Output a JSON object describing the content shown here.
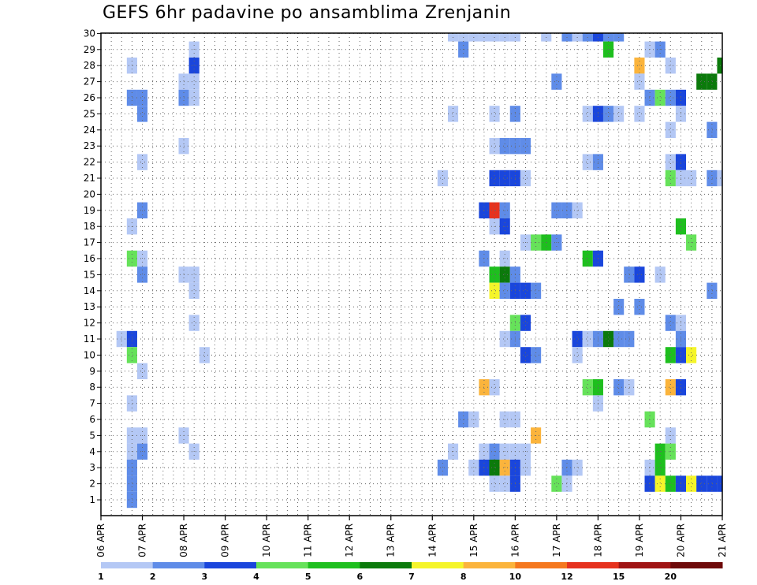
{
  "chart_data": {
    "type": "heatmap",
    "title": "GEFS 6hr padavine po ansamblima Zrenjanin",
    "x_tick_labels": [
      "06 APR",
      "07 APR",
      "08 APR",
      "09 APR",
      "10 APR",
      "11 APR",
      "12 APR",
      "13 APR",
      "14 APR",
      "15 APR",
      "16 APR",
      "17 APR",
      "18 APR",
      "19 APR",
      "20 APR",
      "21 APR"
    ],
    "y_range": [
      1,
      30
    ],
    "time_steps_per_day": 4,
    "grid": true,
    "legend_position": "bottom",
    "color_scale": {
      "labels": [
        "1",
        "2",
        "3",
        "4",
        "5",
        "6",
        "7",
        "8",
        "10",
        "12",
        "15",
        "20"
      ],
      "colors": [
        "#b4c8f5",
        "#5f8ce8",
        "#1a46dc",
        "#66e25a",
        "#1ebf1e",
        "#0b7a0b",
        "#f5f52a",
        "#fbb43c",
        "#f5781e",
        "#e6321e",
        "#a01414",
        "#6e0a0a"
      ]
    },
    "cells": [
      [
        30,
        34,
        0
      ],
      [
        30,
        35,
        0
      ],
      [
        30,
        36,
        0
      ],
      [
        30,
        37,
        0
      ],
      [
        30,
        38,
        0
      ],
      [
        30,
        39,
        0
      ],
      [
        30,
        40,
        0
      ],
      [
        30,
        43,
        0
      ],
      [
        30,
        45,
        1
      ],
      [
        30,
        46,
        0
      ],
      [
        30,
        47,
        1
      ],
      [
        30,
        48,
        2
      ],
      [
        30,
        49,
        1
      ],
      [
        30,
        50,
        1
      ],
      [
        29,
        9,
        0
      ],
      [
        29,
        35,
        1
      ],
      [
        29,
        49,
        4
      ],
      [
        29,
        53,
        0
      ],
      [
        29,
        54,
        1
      ],
      [
        29,
        61,
        0
      ],
      [
        29,
        62,
        2
      ],
      [
        29,
        66,
        0
      ],
      [
        28,
        3,
        0
      ],
      [
        28,
        9,
        2
      ],
      [
        28,
        52,
        7
      ],
      [
        28,
        55,
        0
      ],
      [
        28,
        60,
        5
      ],
      [
        27,
        8,
        0
      ],
      [
        27,
        9,
        0
      ],
      [
        27,
        44,
        1
      ],
      [
        27,
        52,
        0
      ],
      [
        27,
        58,
        5
      ],
      [
        27,
        59,
        5
      ],
      [
        27,
        65,
        5
      ],
      [
        27,
        66,
        8
      ],
      [
        27,
        67,
        4
      ],
      [
        27,
        68,
        0
      ],
      [
        26,
        3,
        1
      ],
      [
        26,
        4,
        1
      ],
      [
        26,
        8,
        1
      ],
      [
        26,
        9,
        0
      ],
      [
        26,
        53,
        1
      ],
      [
        26,
        54,
        3
      ],
      [
        26,
        55,
        1
      ],
      [
        26,
        56,
        2
      ],
      [
        26,
        66,
        0
      ],
      [
        26,
        67,
        1
      ],
      [
        25,
        4,
        1
      ],
      [
        25,
        34,
        0
      ],
      [
        25,
        38,
        0
      ],
      [
        25,
        40,
        1
      ],
      [
        25,
        47,
        0
      ],
      [
        25,
        48,
        2
      ],
      [
        25,
        49,
        1
      ],
      [
        25,
        50,
        0
      ],
      [
        25,
        52,
        0
      ],
      [
        25,
        56,
        0
      ],
      [
        24,
        55,
        0
      ],
      [
        24,
        59,
        1
      ],
      [
        23,
        8,
        0
      ],
      [
        23,
        38,
        0
      ],
      [
        23,
        39,
        1
      ],
      [
        23,
        40,
        1
      ],
      [
        23,
        41,
        1
      ],
      [
        22,
        4,
        0
      ],
      [
        22,
        47,
        0
      ],
      [
        22,
        48,
        1
      ],
      [
        22,
        55,
        0
      ],
      [
        22,
        56,
        2
      ],
      [
        21,
        33,
        0
      ],
      [
        21,
        38,
        2
      ],
      [
        21,
        39,
        2
      ],
      [
        21,
        40,
        2
      ],
      [
        21,
        41,
        0
      ],
      [
        21,
        55,
        3
      ],
      [
        21,
        56,
        0
      ],
      [
        21,
        57,
        0
      ],
      [
        21,
        59,
        1
      ],
      [
        21,
        60,
        0
      ],
      [
        21,
        61,
        2
      ],
      [
        21,
        62,
        4
      ],
      [
        21,
        63,
        3
      ],
      [
        21,
        64,
        3
      ],
      [
        21,
        65,
        0
      ],
      [
        19,
        4,
        1
      ],
      [
        19,
        37,
        2
      ],
      [
        19,
        38,
        9
      ],
      [
        19,
        39,
        1
      ],
      [
        19,
        44,
        1
      ],
      [
        19,
        45,
        1
      ],
      [
        19,
        46,
        0
      ],
      [
        18,
        3,
        0
      ],
      [
        18,
        38,
        0
      ],
      [
        18,
        39,
        2
      ],
      [
        18,
        56,
        4
      ],
      [
        18,
        63,
        2
      ],
      [
        17,
        41,
        0
      ],
      [
        17,
        42,
        3
      ],
      [
        17,
        43,
        4
      ],
      [
        17,
        44,
        1
      ],
      [
        17,
        57,
        3
      ],
      [
        16,
        3,
        3
      ],
      [
        16,
        4,
        0
      ],
      [
        16,
        37,
        1
      ],
      [
        16,
        39,
        0
      ],
      [
        16,
        47,
        4
      ],
      [
        16,
        48,
        2
      ],
      [
        16,
        66,
        0
      ],
      [
        15,
        4,
        1
      ],
      [
        15,
        8,
        0
      ],
      [
        15,
        9,
        0
      ],
      [
        15,
        38,
        4
      ],
      [
        15,
        39,
        5
      ],
      [
        15,
        40,
        1
      ],
      [
        15,
        51,
        1
      ],
      [
        15,
        52,
        2
      ],
      [
        15,
        54,
        0
      ],
      [
        15,
        61,
        0
      ],
      [
        15,
        66,
        0
      ],
      [
        15,
        67,
        3
      ],
      [
        15,
        68,
        1
      ],
      [
        14,
        9,
        0
      ],
      [
        14,
        38,
        6
      ],
      [
        14,
        39,
        1
      ],
      [
        14,
        40,
        2
      ],
      [
        14,
        41,
        2
      ],
      [
        14,
        42,
        1
      ],
      [
        14,
        59,
        1
      ],
      [
        14,
        64,
        0
      ],
      [
        13,
        50,
        1
      ],
      [
        13,
        52,
        1
      ],
      [
        13,
        62,
        0
      ],
      [
        12,
        9,
        0
      ],
      [
        12,
        40,
        3
      ],
      [
        12,
        41,
        2
      ],
      [
        12,
        55,
        1
      ],
      [
        12,
        56,
        0
      ],
      [
        11,
        2,
        0
      ],
      [
        11,
        3,
        2
      ],
      [
        11,
        39,
        0
      ],
      [
        11,
        40,
        1
      ],
      [
        11,
        46,
        2
      ],
      [
        11,
        47,
        0
      ],
      [
        11,
        48,
        1
      ],
      [
        11,
        49,
        5
      ],
      [
        11,
        50,
        1
      ],
      [
        11,
        51,
        1
      ],
      [
        11,
        56,
        1
      ],
      [
        10,
        3,
        3
      ],
      [
        10,
        10,
        0
      ],
      [
        10,
        41,
        2
      ],
      [
        10,
        42,
        1
      ],
      [
        10,
        46,
        0
      ],
      [
        10,
        55,
        4
      ],
      [
        10,
        56,
        2
      ],
      [
        10,
        57,
        6
      ],
      [
        10,
        66,
        0
      ],
      [
        10,
        67,
        0
      ],
      [
        9,
        4,
        0
      ],
      [
        9,
        68,
        1
      ],
      [
        8,
        37,
        7
      ],
      [
        8,
        38,
        0
      ],
      [
        8,
        47,
        3
      ],
      [
        8,
        48,
        4
      ],
      [
        8,
        50,
        1
      ],
      [
        8,
        51,
        0
      ],
      [
        8,
        55,
        7
      ],
      [
        8,
        56,
        2
      ],
      [
        8,
        64,
        0
      ],
      [
        8,
        68,
        5
      ],
      [
        7,
        3,
        0
      ],
      [
        7,
        48,
        0
      ],
      [
        7,
        61,
        1
      ],
      [
        7,
        62,
        2
      ],
      [
        7,
        64,
        3
      ],
      [
        7,
        65,
        0
      ],
      [
        6,
        35,
        1
      ],
      [
        6,
        36,
        0
      ],
      [
        6,
        39,
        0
      ],
      [
        6,
        40,
        0
      ],
      [
        6,
        53,
        3
      ],
      [
        5,
        3,
        0
      ],
      [
        5,
        4,
        0
      ],
      [
        5,
        8,
        0
      ],
      [
        5,
        42,
        7
      ],
      [
        5,
        55,
        0
      ],
      [
        4,
        3,
        0
      ],
      [
        4,
        4,
        1
      ],
      [
        4,
        9,
        0
      ],
      [
        4,
        34,
        0
      ],
      [
        4,
        37,
        0
      ],
      [
        4,
        38,
        1
      ],
      [
        4,
        39,
        0
      ],
      [
        4,
        40,
        0
      ],
      [
        4,
        41,
        0
      ],
      [
        4,
        54,
        4
      ],
      [
        4,
        55,
        3
      ],
      [
        4,
        68,
        0
      ],
      [
        3,
        3,
        1
      ],
      [
        3,
        33,
        1
      ],
      [
        3,
        36,
        0
      ],
      [
        3,
        37,
        2
      ],
      [
        3,
        38,
        5
      ],
      [
        3,
        39,
        7
      ],
      [
        3,
        40,
        2
      ],
      [
        3,
        41,
        0
      ],
      [
        3,
        45,
        1
      ],
      [
        3,
        46,
        0
      ],
      [
        3,
        53,
        0
      ],
      [
        3,
        54,
        4
      ],
      [
        3,
        67,
        1
      ],
      [
        2,
        3,
        1
      ],
      [
        2,
        38,
        0
      ],
      [
        2,
        39,
        0
      ],
      [
        2,
        40,
        2
      ],
      [
        2,
        44,
        3
      ],
      [
        2,
        45,
        0
      ],
      [
        2,
        53,
        2
      ],
      [
        2,
        54,
        6
      ],
      [
        2,
        55,
        4
      ],
      [
        2,
        56,
        2
      ],
      [
        2,
        57,
        6
      ],
      [
        2,
        58,
        2
      ],
      [
        2,
        59,
        2
      ],
      [
        2,
        60,
        2
      ],
      [
        2,
        61,
        0
      ],
      [
        2,
        63,
        0
      ],
      [
        1,
        3,
        1
      ]
    ]
  }
}
